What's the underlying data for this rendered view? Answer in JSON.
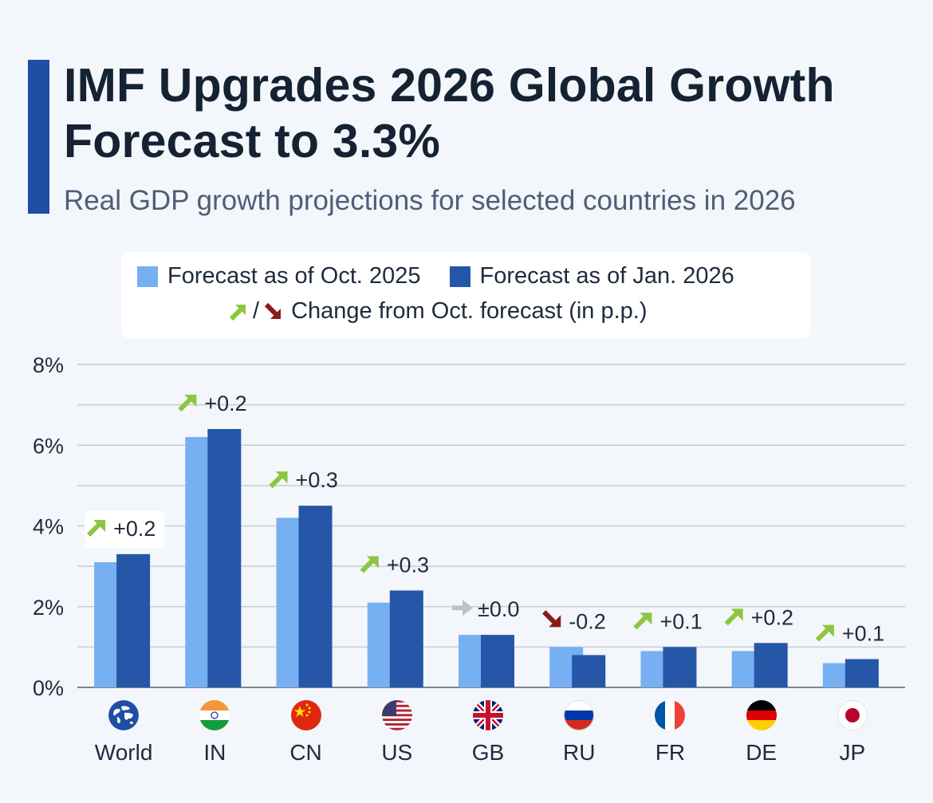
{
  "header": {
    "title": "IMF Upgrades 2026 Global Growth Forecast to 3.3%",
    "subtitle": "Real GDP growth projections for selected countries in 2026"
  },
  "legend": {
    "oct_label": "Forecast as of Oct. 2025",
    "jan_label": "Forecast as of Jan. 2026",
    "slash": "/",
    "change_label": "Change from Oct. forecast (in p.p.)"
  },
  "colors": {
    "oct": "#76aff2",
    "jan": "#2556a8",
    "up_arrow": "#8cc63f",
    "down_arrow": "#8b1a1a",
    "neutral_arrow": "#b8c4cc",
    "grid": "#c8cdd6"
  },
  "chart_data": {
    "type": "bar",
    "categories": [
      "World",
      "IN",
      "CN",
      "US",
      "GB",
      "RU",
      "FR",
      "DE",
      "JP"
    ],
    "series": [
      {
        "name": "Forecast as of Oct. 2025",
        "values": [
          3.1,
          6.2,
          4.2,
          2.1,
          1.3,
          1.0,
          0.9,
          0.9,
          0.6
        ]
      },
      {
        "name": "Forecast as of Jan. 2026",
        "values": [
          3.3,
          6.4,
          4.5,
          2.4,
          1.3,
          0.8,
          1.0,
          1.1,
          0.7
        ]
      }
    ],
    "changes": [
      "+0.2",
      "+0.2",
      "+0.3",
      "+0.3",
      "±0.0",
      "-0.2",
      "+0.1",
      "+0.2",
      "+0.1"
    ],
    "change_direction": [
      "up",
      "up",
      "up",
      "up",
      "neutral",
      "down",
      "up",
      "up",
      "up"
    ],
    "y_ticks": [
      "0%",
      "2%",
      "4%",
      "6%",
      "8%"
    ],
    "ylim": [
      0,
      8
    ],
    "grid": true,
    "flags": [
      "world-icon",
      "india-flag-icon",
      "china-flag-icon",
      "usa-flag-icon",
      "uk-flag-icon",
      "russia-flag-icon",
      "france-flag-icon",
      "germany-flag-icon",
      "japan-flag-icon"
    ]
  }
}
